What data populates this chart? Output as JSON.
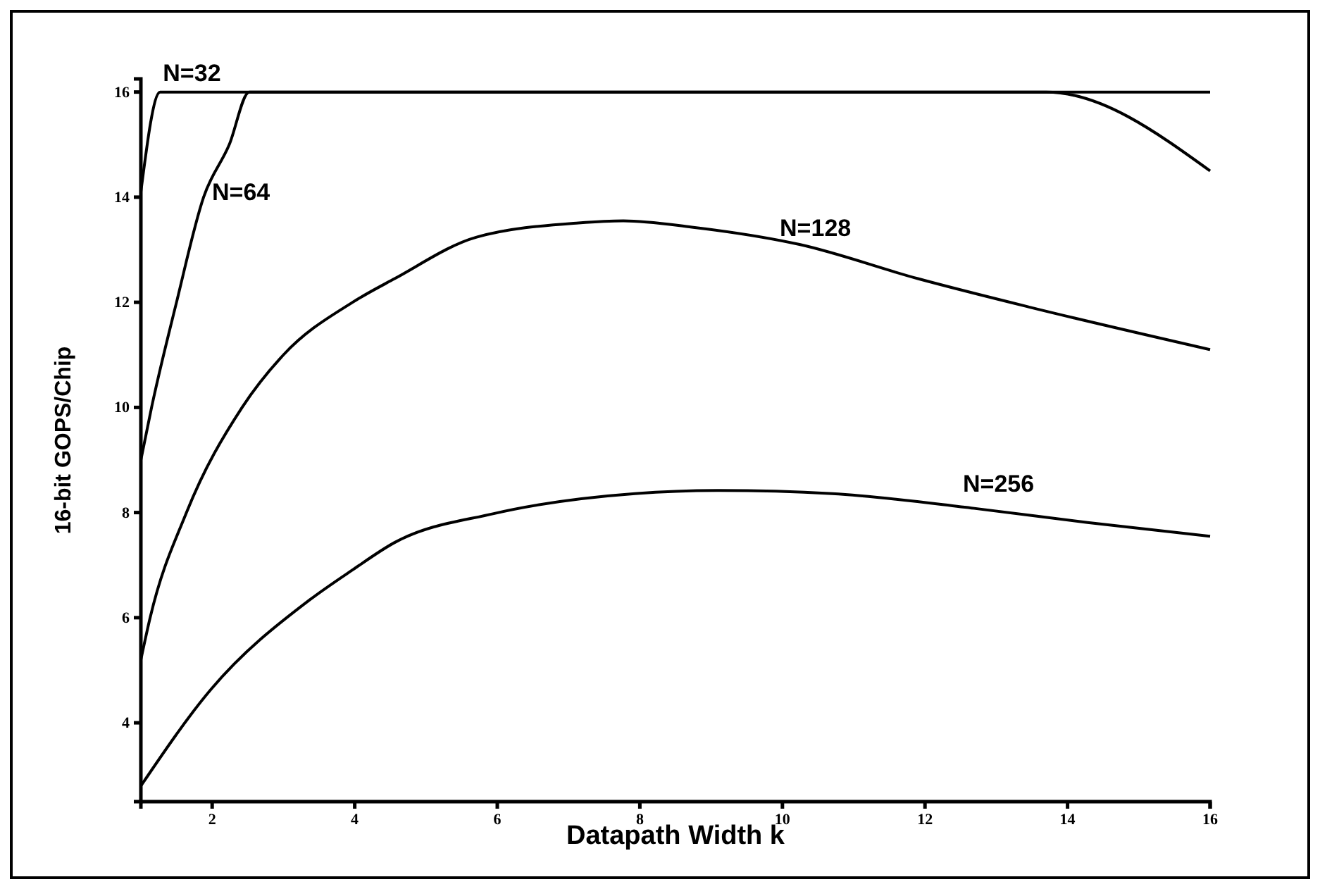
{
  "chart_data": {
    "type": "line",
    "xlabel": "Datapath Width k",
    "ylabel": "16-bit GOPS/Chip",
    "xlim": [
      1,
      16
    ],
    "ylim": [
      2.5,
      16.25
    ],
    "xticks": [
      2,
      4,
      6,
      8,
      10,
      12,
      14,
      16
    ],
    "yticks": [
      4,
      6,
      8,
      10,
      12,
      14,
      16
    ],
    "grid": false,
    "marker": "none",
    "line_style": "solid",
    "series": [
      {
        "name": "N=32",
        "color": "#000000",
        "x": [
          1,
          1.27,
          13.7,
          16
        ],
        "values": [
          14.1,
          16,
          16,
          14.5
        ]
      },
      {
        "name": "N=64",
        "color": "#000000",
        "x": [
          1,
          1.15,
          1.5,
          1.88,
          2.24,
          2.52,
          16
        ],
        "values": [
          9.0,
          10,
          12,
          14,
          15,
          16,
          16
        ]
      },
      {
        "name": "N=128",
        "color": "#000000",
        "x": [
          1,
          1.13,
          1.64,
          2.42,
          3,
          3.97,
          4.56,
          5.71,
          7.14,
          7.77,
          8.73,
          10.24,
          11.9,
          13.49,
          16
        ],
        "values": [
          5.2,
          6,
          8,
          10,
          11,
          12,
          12.45,
          13.24,
          13.51,
          13.55,
          13.43,
          13.1,
          12.45,
          11.9,
          11.1
        ]
      },
      {
        "name": "N=256",
        "color": "#000000",
        "x": [
          1,
          1.98,
          3.37,
          3.96,
          4.56,
          5.95,
          7.93,
          9.12,
          10.7,
          12.69,
          14.28,
          16
        ],
        "values": [
          2.8,
          4.63,
          6.34,
          6.9,
          7.43,
          7.98,
          8.36,
          8.42,
          8.36,
          8.08,
          7.81,
          7.55
        ]
      }
    ],
    "legend": false
  }
}
